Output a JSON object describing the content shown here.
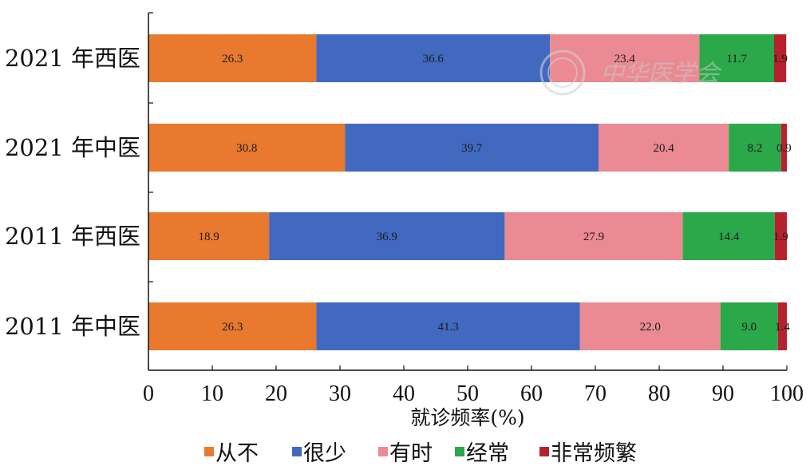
{
  "chart_data": {
    "type": "bar",
    "orientation": "horizontal",
    "stacked": true,
    "categories": [
      "2021 年西医",
      "2021 年中医",
      "2011 年西医",
      "2011 年中医"
    ],
    "series": [
      {
        "name": "从不",
        "color": "#E8792E",
        "values": [
          26.3,
          30.8,
          18.9,
          26.3
        ],
        "labels": [
          "26.3",
          "30.8",
          "18.9",
          "26.3"
        ]
      },
      {
        "name": "很少",
        "color": "#4169C0",
        "values": [
          36.6,
          39.7,
          36.9,
          41.3
        ],
        "labels": [
          "36.6",
          "39.7",
          "36.9",
          "41.3"
        ]
      },
      {
        "name": "有时",
        "color": "#EB8A92",
        "values": [
          23.4,
          20.4,
          27.9,
          22.0
        ],
        "labels": [
          "23.4",
          "20.4",
          "27.9",
          "22.0"
        ]
      },
      {
        "name": "经常",
        "color": "#2BA84A",
        "values": [
          11.7,
          8.2,
          14.4,
          9.0
        ],
        "labels": [
          "11.7",
          "8.2",
          "14.4",
          "9.0"
        ]
      },
      {
        "name": "非常频繁",
        "color": "#B5222E",
        "values": [
          1.9,
          0.9,
          1.9,
          1.4
        ],
        "labels": [
          "1.9",
          "0.9",
          "1.9",
          "1.4"
        ]
      }
    ],
    "xlabel": "就诊频率(%)",
    "xlim": [
      0,
      100
    ],
    "xticks": [
      "0",
      "10",
      "20",
      "30",
      "40",
      "50",
      "60",
      "70",
      "80",
      "90",
      "100"
    ],
    "legend_position": "bottom",
    "grid": false
  },
  "watermark": {
    "text": "中华医学会",
    "icon": "society-seal-icon"
  }
}
